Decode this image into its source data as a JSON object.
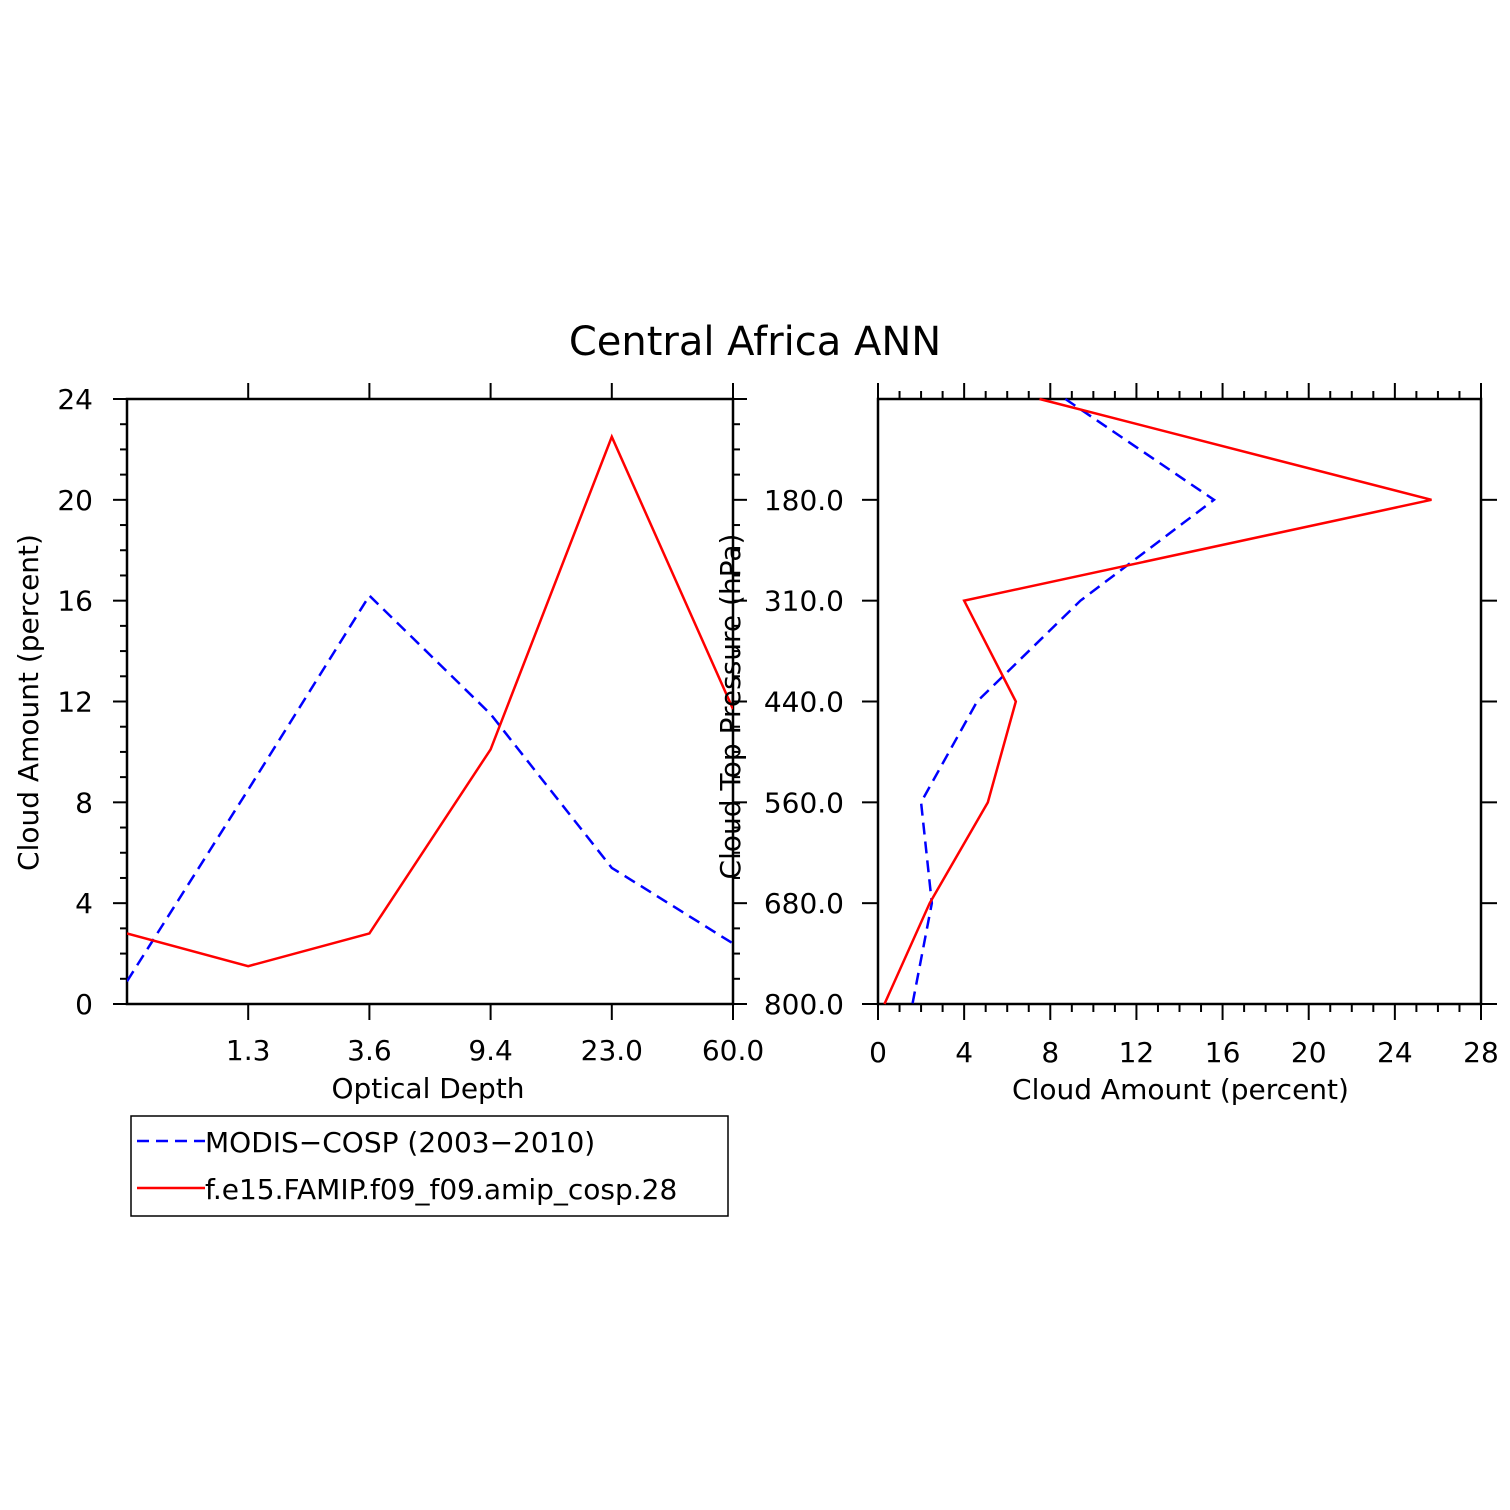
{
  "title": "Central Africa ANN",
  "colors": {
    "obs": "#0000ff",
    "model": "#ff0000",
    "axis": "#000000"
  },
  "legend": {
    "entries": [
      {
        "label": "MODIS−COSP (2003−2010)",
        "color": "#0000ff",
        "dash": true
      },
      {
        "label": "f.e15.FAMIP.f09_f09.amip_cosp.28",
        "color": "#ff0000",
        "dash": false
      }
    ]
  },
  "chart_data": [
    {
      "type": "line",
      "xlabel": "Optical Depth",
      "ylabel": "Cloud Amount (percent)",
      "x_ticklabels": [
        "1.3",
        "3.6",
        "9.4",
        "23.0",
        "60.0"
      ],
      "x_categories": [
        1,
        2,
        3,
        4,
        5,
        6
      ],
      "xlim": [
        0.5,
        5.5
      ],
      "ylim": [
        0,
        24
      ],
      "y_ticks": [
        0,
        4,
        8,
        12,
        16,
        20,
        24
      ],
      "y_minor_step": 1,
      "series": [
        {
          "name": "MODIS−COSP (2003−2010)",
          "style": "dashed",
          "color": "#0000ff",
          "values": [
            0.9,
            8.5,
            16.2,
            11.5,
            5.4,
            2.4
          ]
        },
        {
          "name": "f.e15.FAMIP.f09_f09.amip_cosp.28",
          "style": "solid",
          "color": "#ff0000",
          "values": [
            2.8,
            1.5,
            2.8,
            10.1,
            22.5,
            11.7
          ]
        }
      ]
    },
    {
      "type": "line",
      "orientation": "horizontal",
      "xlabel": "Cloud Amount (percent)",
      "ylabel": "Cloud Top Pressure (hPa)",
      "xlim": [
        0,
        28
      ],
      "x_ticks": [
        0,
        4,
        8,
        12,
        16,
        20,
        24,
        28
      ],
      "x_minor_step": 1,
      "y_ticklabels": [
        "180.0",
        "310.0",
        "440.0",
        "560.0",
        "680.0",
        "800.0"
      ],
      "y_levels": [
        1,
        2,
        3,
        4,
        5,
        6,
        7
      ],
      "ylim": [
        0.5,
        6.5
      ],
      "series": [
        {
          "name": "MODIS−COSP (2003−2010)",
          "style": "dashed",
          "color": "#0000ff",
          "values": [
            8.7,
            15.6,
            9.4,
            4.6,
            2.0,
            2.5,
            1.6
          ]
        },
        {
          "name": "f.e15.FAMIP.f09_f09.amip_cosp.28",
          "style": "solid",
          "color": "#ff0000",
          "values": [
            7.5,
            25.7,
            4.0,
            6.4,
            5.1,
            2.4,
            0.3
          ]
        }
      ]
    }
  ]
}
